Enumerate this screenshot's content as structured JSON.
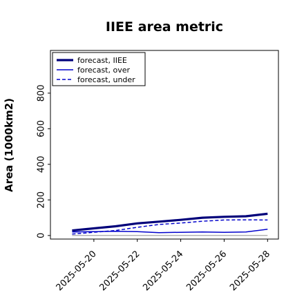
{
  "chart_data": {
    "type": "line",
    "title": "IIEE area metric",
    "xlabel": "",
    "ylabel": "Area (1000km2)",
    "x": [
      "2025-05-19",
      "2025-05-20",
      "2025-05-21",
      "2025-05-22",
      "2025-05-23",
      "2025-05-24",
      "2025-05-25",
      "2025-05-26",
      "2025-05-27",
      "2025-05-28"
    ],
    "xlim": [
      "2025-05-18",
      "2025-05-28.5"
    ],
    "ylim": [
      -20,
      1040
    ],
    "yticks": [
      0,
      200,
      400,
      600,
      800
    ],
    "xticks": [
      "2025-05-20",
      "2025-05-22",
      "2025-05-24",
      "2025-05-26",
      "2025-05-28"
    ],
    "highlight_tick": "2025-05-20",
    "grid": false,
    "legend_position": "top-left",
    "series": [
      {
        "name": "forecast, IIEE",
        "values": [
          28,
          40,
          52,
          68,
          78,
          88,
          100,
          105,
          108,
          122
        ],
        "color": "#00007a",
        "style": "solid-thick"
      },
      {
        "name": "forecast, over",
        "values": [
          20,
          22,
          24,
          22,
          16,
          18,
          20,
          18,
          20,
          35
        ],
        "color": "#0000cc",
        "style": "solid"
      },
      {
        "name": "forecast, under",
        "values": [
          8,
          18,
          28,
          46,
          62,
          70,
          80,
          87,
          88,
          87
        ],
        "color": "#0000cc",
        "style": "dashed"
      },
      {
        "name": "",
        "values": [
          0,
          0,
          0,
          0,
          0,
          0,
          0,
          0,
          0,
          0
        ],
        "color": "#999999",
        "style": "solid"
      }
    ],
    "colors": {
      "highlight_tick": "#228B22",
      "axis": "#000000"
    }
  }
}
